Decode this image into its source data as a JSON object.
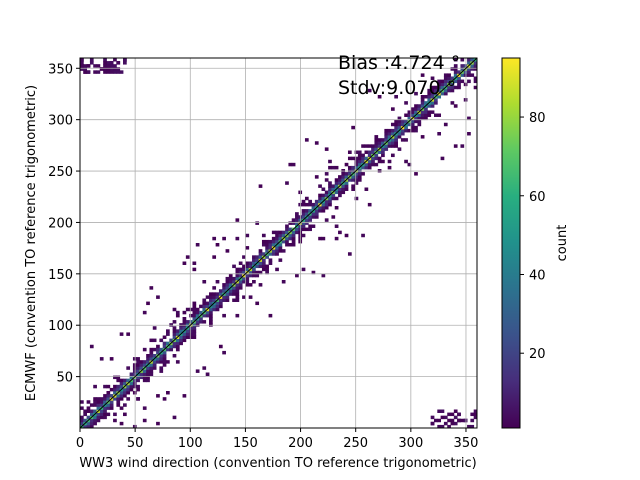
{
  "chart_data": {
    "type": "heatmap",
    "title": "",
    "xlabel": "WW3 wind direction (convention TO reference trigonometric)",
    "ylabel": "ECMWF (convention TO reference trigonometric)",
    "xlim": [
      0,
      360
    ],
    "ylim": [
      0,
      360
    ],
    "xticks": [
      "0",
      "50",
      "100",
      "150",
      "200",
      "250",
      "300",
      "350"
    ],
    "yticks": [
      "50",
      "100",
      "150",
      "200",
      "250",
      "300",
      "350"
    ],
    "grid": true,
    "annotations": [
      "Bias :4.724 °",
      "Stdv:9.070 °"
    ],
    "colorbar": {
      "label": "count",
      "min": 1,
      "max": 95,
      "ticks": [
        "20",
        "40",
        "60",
        "80"
      ],
      "colormap": "viridis"
    },
    "bin_size_deg": 3,
    "structure": {
      "diagonal": "dense band along y = x, highest counts (up to ~95) at the centre line",
      "spread": "band widens to roughly ±20 degrees with low counts near the edges",
      "wraparound": "sparse clusters in the top-left and bottom-right corners from 0/360 wrap",
      "outliers": "scattered single low-count bins away from the diagonal"
    }
  }
}
